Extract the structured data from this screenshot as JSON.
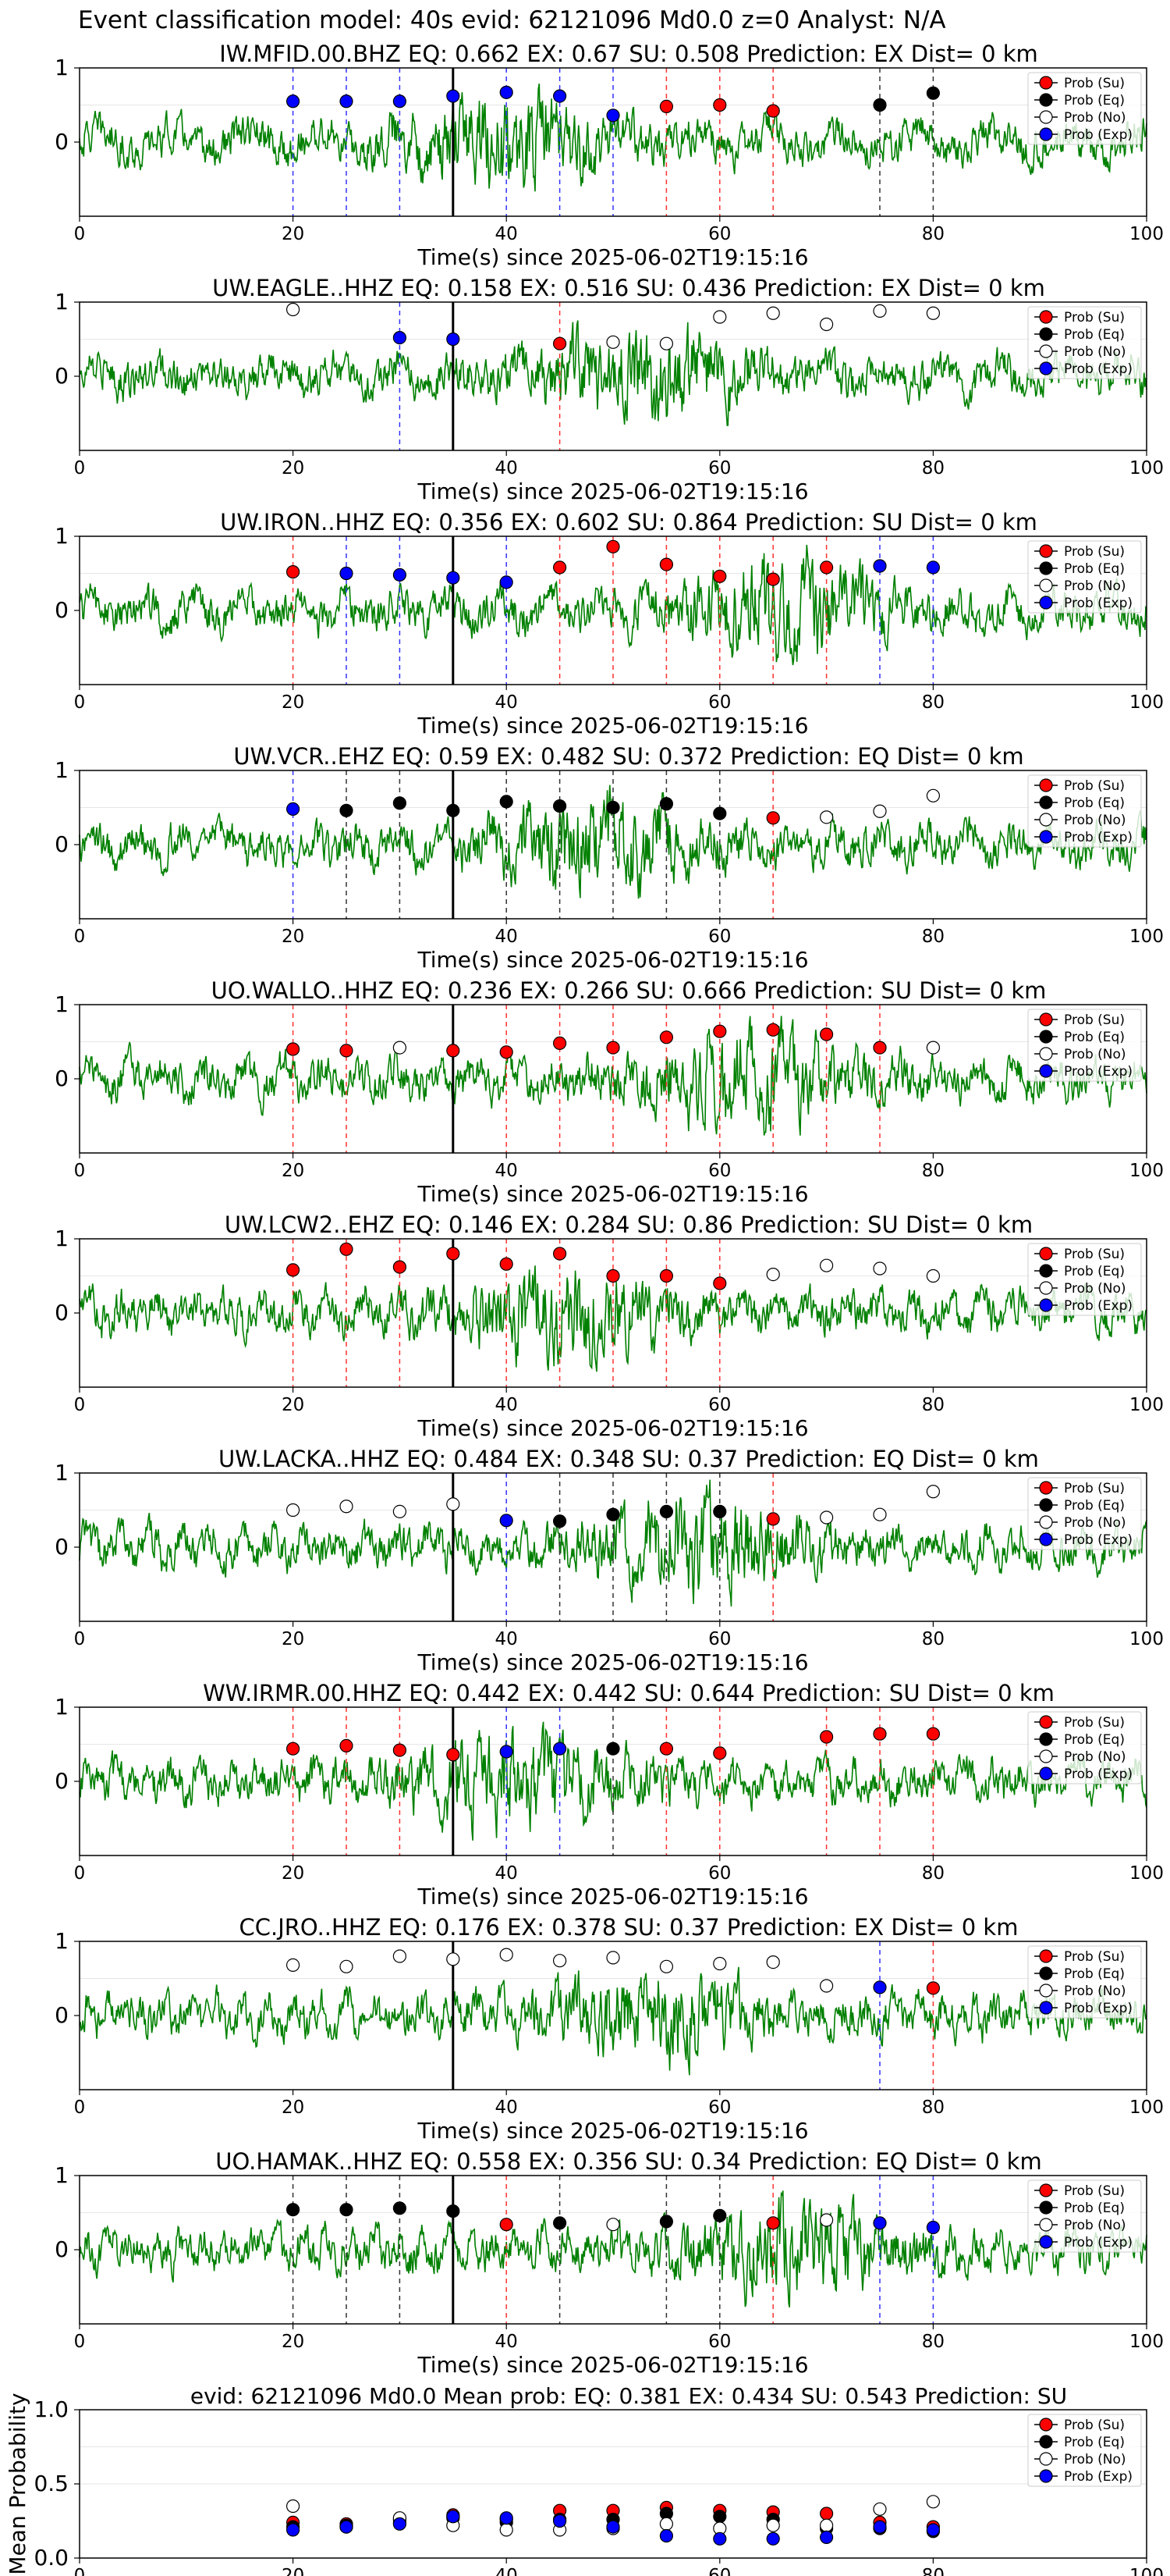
{
  "suptitle": "Event classification model: 40s evid: 62121096 Md0.0 z=0 Analyst: N/A",
  "colors": {
    "waveform": "#008000",
    "su": "#ff0000",
    "eq": "#000000",
    "no": "#ffffff",
    "exp": "#0000ff",
    "su_line": "#ff3333",
    "eq_line": "#333333",
    "exp_line": "#3333ff"
  },
  "chart_data": {
    "type": "scatter",
    "legend_labels": [
      "Prob (Su)",
      "Prob (Eq)",
      "Prob (No)",
      "Prob (Exp)"
    ],
    "legend_placement": "top-right",
    "xlabel": "Time(s) since 2025-06-02T19:15:16",
    "xlim": [
      0,
      100
    ],
    "xticks": [
      0,
      20,
      40,
      60,
      80,
      100
    ],
    "ylim": [
      -1,
      1
    ],
    "yticks": [
      0,
      1
    ],
    "event_time": 35,
    "stations": [
      {
        "title": "IW.MFID.00.BHZ   EQ: 0.662  EX: 0.67  SU: 0.508   Prediction: EX    Dist= 0 km",
        "points": [
          [
            20,
            0.55,
            "exp"
          ],
          [
            25,
            0.55,
            "exp"
          ],
          [
            30,
            0.55,
            "exp"
          ],
          [
            35,
            0.62,
            "exp"
          ],
          [
            40,
            0.67,
            "exp"
          ],
          [
            45,
            0.62,
            "exp"
          ],
          [
            50,
            0.36,
            "exp"
          ],
          [
            55,
            0.48,
            "su"
          ],
          [
            60,
            0.5,
            "su"
          ],
          [
            65,
            0.42,
            "su"
          ],
          [
            75,
            0.5,
            "eq"
          ],
          [
            80,
            0.66,
            "eq"
          ]
        ]
      },
      {
        "title": "UW.EAGLE..HHZ   EQ: 0.158  EX: 0.516  SU: 0.436   Prediction: EX    Dist= 0 km",
        "points": [
          [
            20,
            0.9,
            "no"
          ],
          [
            30,
            0.52,
            "exp"
          ],
          [
            35,
            0.5,
            "exp"
          ],
          [
            45,
            0.44,
            "su"
          ],
          [
            50,
            0.46,
            "no"
          ],
          [
            55,
            0.44,
            "no"
          ],
          [
            60,
            0.8,
            "no"
          ],
          [
            65,
            0.85,
            "no"
          ],
          [
            70,
            0.7,
            "no"
          ],
          [
            75,
            0.88,
            "no"
          ],
          [
            80,
            0.85,
            "no"
          ]
        ]
      },
      {
        "title": "UW.IRON..HHZ   EQ: 0.356  EX: 0.602  SU: 0.864   Prediction: SU    Dist= 0 km",
        "points": [
          [
            20,
            0.52,
            "su"
          ],
          [
            25,
            0.5,
            "exp"
          ],
          [
            30,
            0.48,
            "exp"
          ],
          [
            35,
            0.44,
            "exp"
          ],
          [
            40,
            0.38,
            "exp"
          ],
          [
            45,
            0.58,
            "su"
          ],
          [
            50,
            0.86,
            "su"
          ],
          [
            55,
            0.62,
            "su"
          ],
          [
            60,
            0.46,
            "su"
          ],
          [
            65,
            0.42,
            "su"
          ],
          [
            70,
            0.58,
            "su"
          ],
          [
            75,
            0.6,
            "exp"
          ],
          [
            80,
            0.58,
            "exp"
          ]
        ]
      },
      {
        "title": "UW.VCR..EHZ   EQ: 0.59  EX: 0.482  SU: 0.372   Prediction: EQ    Dist= 0 km",
        "points": [
          [
            20,
            0.48,
            "exp"
          ],
          [
            25,
            0.46,
            "eq"
          ],
          [
            30,
            0.56,
            "eq"
          ],
          [
            35,
            0.46,
            "eq"
          ],
          [
            40,
            0.58,
            "eq"
          ],
          [
            45,
            0.52,
            "eq"
          ],
          [
            50,
            0.5,
            "eq"
          ],
          [
            55,
            0.55,
            "eq"
          ],
          [
            60,
            0.42,
            "eq"
          ],
          [
            65,
            0.36,
            "su"
          ],
          [
            70,
            0.37,
            "no"
          ],
          [
            75,
            0.45,
            "no"
          ],
          [
            80,
            0.66,
            "no"
          ]
        ]
      },
      {
        "title": "UO.WALLO..HHZ   EQ: 0.236  EX: 0.266  SU: 0.666   Prediction: SU    Dist= 0 km",
        "points": [
          [
            20,
            0.4,
            "su"
          ],
          [
            25,
            0.38,
            "su"
          ],
          [
            30,
            0.42,
            "no"
          ],
          [
            35,
            0.38,
            "su"
          ],
          [
            40,
            0.36,
            "su"
          ],
          [
            45,
            0.48,
            "su"
          ],
          [
            50,
            0.42,
            "su"
          ],
          [
            55,
            0.56,
            "su"
          ],
          [
            60,
            0.64,
            "su"
          ],
          [
            65,
            0.66,
            "su"
          ],
          [
            70,
            0.6,
            "su"
          ],
          [
            75,
            0.42,
            "su"
          ],
          [
            80,
            0.42,
            "no"
          ]
        ]
      },
      {
        "title": "UW.LCW2..EHZ   EQ: 0.146  EX: 0.284  SU: 0.86   Prediction: SU    Dist= 0 km",
        "points": [
          [
            20,
            0.58,
            "su"
          ],
          [
            25,
            0.86,
            "su"
          ],
          [
            30,
            0.62,
            "su"
          ],
          [
            35,
            0.8,
            "su"
          ],
          [
            40,
            0.66,
            "su"
          ],
          [
            45,
            0.8,
            "su"
          ],
          [
            50,
            0.5,
            "su"
          ],
          [
            55,
            0.5,
            "su"
          ],
          [
            60,
            0.4,
            "su"
          ],
          [
            65,
            0.52,
            "no"
          ],
          [
            70,
            0.64,
            "no"
          ],
          [
            75,
            0.6,
            "no"
          ],
          [
            80,
            0.5,
            "no"
          ]
        ]
      },
      {
        "title": "UW.LACKA..HHZ   EQ: 0.484  EX: 0.348  SU: 0.37   Prediction: EQ    Dist= 0 km",
        "points": [
          [
            20,
            0.5,
            "no"
          ],
          [
            25,
            0.55,
            "no"
          ],
          [
            30,
            0.48,
            "no"
          ],
          [
            35,
            0.58,
            "no"
          ],
          [
            40,
            0.36,
            "exp"
          ],
          [
            45,
            0.35,
            "eq"
          ],
          [
            50,
            0.44,
            "eq"
          ],
          [
            55,
            0.48,
            "eq"
          ],
          [
            60,
            0.48,
            "eq"
          ],
          [
            65,
            0.38,
            "su"
          ],
          [
            70,
            0.4,
            "no"
          ],
          [
            75,
            0.44,
            "no"
          ],
          [
            80,
            0.75,
            "no"
          ]
        ]
      },
      {
        "title": "WW.IRMR.00.HHZ   EQ: 0.442  EX: 0.442  SU: 0.644   Prediction: SU    Dist= 0 km",
        "points": [
          [
            20,
            0.44,
            "su"
          ],
          [
            25,
            0.48,
            "su"
          ],
          [
            30,
            0.42,
            "su"
          ],
          [
            35,
            0.36,
            "su"
          ],
          [
            40,
            0.4,
            "exp"
          ],
          [
            45,
            0.44,
            "exp"
          ],
          [
            50,
            0.44,
            "eq"
          ],
          [
            55,
            0.44,
            "su"
          ],
          [
            60,
            0.38,
            "su"
          ],
          [
            70,
            0.6,
            "su"
          ],
          [
            75,
            0.64,
            "su"
          ],
          [
            80,
            0.64,
            "su"
          ]
        ]
      },
      {
        "title": "CC.JRO..HHZ   EQ: 0.176  EX: 0.378  SU: 0.37   Prediction: EX    Dist= 0 km",
        "points": [
          [
            20,
            0.68,
            "no"
          ],
          [
            25,
            0.66,
            "no"
          ],
          [
            30,
            0.8,
            "no"
          ],
          [
            35,
            0.76,
            "no"
          ],
          [
            40,
            0.82,
            "no"
          ],
          [
            45,
            0.74,
            "no"
          ],
          [
            50,
            0.78,
            "no"
          ],
          [
            55,
            0.66,
            "no"
          ],
          [
            60,
            0.7,
            "no"
          ],
          [
            65,
            0.72,
            "no"
          ],
          [
            70,
            0.4,
            "no"
          ],
          [
            75,
            0.38,
            "exp"
          ],
          [
            80,
            0.37,
            "su"
          ]
        ]
      },
      {
        "title": "UO.HAMAK..HHZ   EQ: 0.558  EX: 0.356  SU: 0.34   Prediction: EQ    Dist= 0 km",
        "points": [
          [
            20,
            0.54,
            "eq"
          ],
          [
            25,
            0.54,
            "eq"
          ],
          [
            30,
            0.56,
            "eq"
          ],
          [
            35,
            0.52,
            "eq"
          ],
          [
            40,
            0.34,
            "su"
          ],
          [
            45,
            0.36,
            "eq"
          ],
          [
            50,
            0.34,
            "no"
          ],
          [
            55,
            0.38,
            "eq"
          ],
          [
            60,
            0.46,
            "eq"
          ],
          [
            65,
            0.36,
            "su"
          ],
          [
            70,
            0.4,
            "no"
          ],
          [
            75,
            0.36,
            "exp"
          ],
          [
            80,
            0.3,
            "exp"
          ]
        ]
      }
    ],
    "mean": {
      "title": "evid: 62121096  Md0.0   Mean prob:   EQ: 0.381  EX: 0.434  SU: 0.543   Prediction: SU",
      "ylabel": "Mean Probability",
      "ylim": [
        0,
        1
      ],
      "yticks": [
        0.0,
        0.5,
        1.0
      ],
      "x": [
        20,
        25,
        30,
        35,
        40,
        45,
        50,
        55,
        60,
        65,
        70,
        75,
        80
      ],
      "series": [
        {
          "name": "Prob (Su)",
          "key": "su",
          "values": [
            0.24,
            0.23,
            0.24,
            0.29,
            0.26,
            0.32,
            0.32,
            0.34,
            0.32,
            0.31,
            0.3,
            0.24,
            0.21
          ]
        },
        {
          "name": "Prob (Eq)",
          "key": "eq",
          "values": [
            0.21,
            0.22,
            0.26,
            0.27,
            0.24,
            0.26,
            0.26,
            0.3,
            0.28,
            0.26,
            0.2,
            0.2,
            0.18
          ]
        },
        {
          "name": "Prob (No)",
          "key": "no",
          "values": [
            0.35,
            0.21,
            0.27,
            0.22,
            0.19,
            0.19,
            0.2,
            0.23,
            0.2,
            0.22,
            0.22,
            0.33,
            0.38
          ]
        },
        {
          "name": "Prob (Exp)",
          "key": "exp",
          "values": [
            0.19,
            0.21,
            0.23,
            0.28,
            0.27,
            0.25,
            0.21,
            0.15,
            0.13,
            0.13,
            0.14,
            0.21,
            0.19
          ]
        }
      ]
    }
  }
}
